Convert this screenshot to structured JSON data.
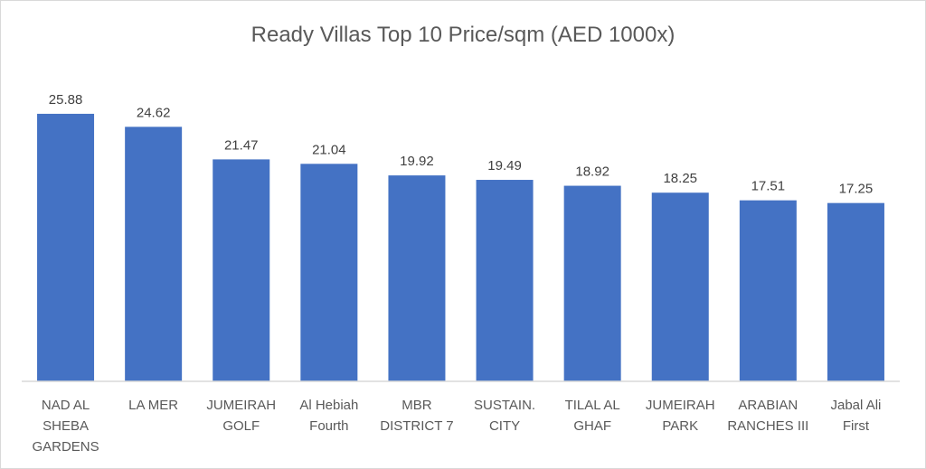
{
  "chart_data": {
    "type": "bar",
    "title": "Ready Villas Top 10 Price/sqm (AED 1000x)",
    "xlabel": "",
    "ylabel": "",
    "ylim": [
      0,
      29
    ],
    "grid": false,
    "categories": [
      [
        "NAD AL",
        "SHEBA",
        "GARDENS"
      ],
      [
        "LA MER"
      ],
      [
        "JUMEIRAH",
        "GOLF"
      ],
      [
        "Al Hebiah",
        "Fourth"
      ],
      [
        "MBR",
        "DISTRICT 7"
      ],
      [
        "SUSTAIN.",
        "CITY"
      ],
      [
        "TILAL AL",
        "GHAF"
      ],
      [
        "JUMEIRAH",
        "PARK"
      ],
      [
        "ARABIAN",
        "RANCHES III"
      ],
      [
        "Jabal Ali",
        "First"
      ]
    ],
    "values": [
      25.88,
      24.62,
      21.47,
      21.04,
      19.92,
      19.49,
      18.92,
      18.25,
      17.51,
      17.25
    ],
    "value_labels": [
      "25.88",
      "24.62",
      "21.47",
      "21.04",
      "19.92",
      "19.49",
      "18.92",
      "18.25",
      "17.51",
      "17.25"
    ],
    "bar_color": "#4472c4",
    "axis_color": "#d9d9d9"
  }
}
